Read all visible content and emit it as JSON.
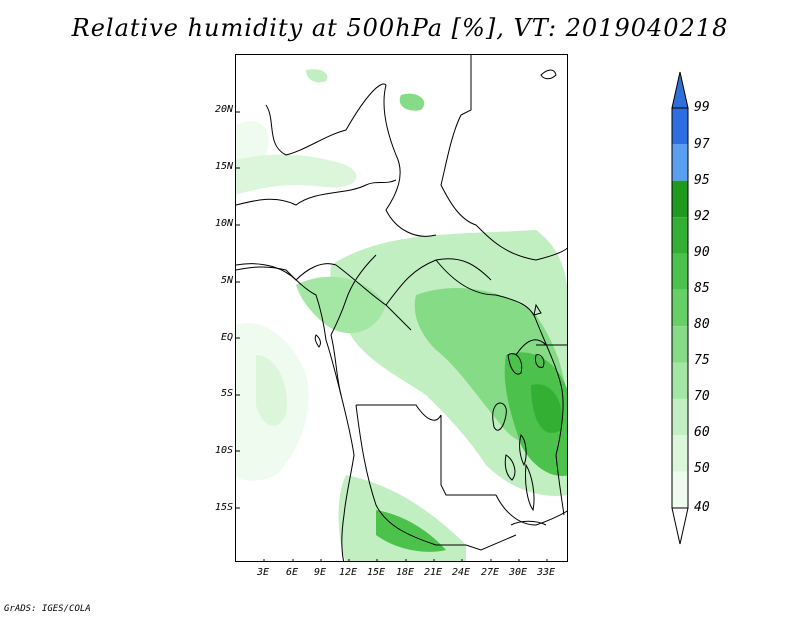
{
  "title": "Relative humidity at 500hPa [%], VT: 2019040218",
  "credit": "GrADS: IGES/COLA",
  "map": {
    "lat_labels": [
      "20N",
      "15N",
      "10N",
      "5N",
      "EQ",
      "5S",
      "10S",
      "15S"
    ],
    "lon_labels": [
      "3E",
      "6E",
      "9E",
      "12E",
      "15E",
      "18E",
      "21E",
      "24E",
      "27E",
      "30E",
      "33E"
    ]
  },
  "colorbar": {
    "labels": [
      "99",
      "97",
      "95",
      "92",
      "90",
      "85",
      "80",
      "75",
      "70",
      "60",
      "50",
      "40"
    ],
    "colors": [
      "#3d83ea",
      "#2d6fe0",
      "#5aa0f0",
      "#1f9a1f",
      "#33b033",
      "#4cc24c",
      "#66d066",
      "#86dc86",
      "#a4e6a4",
      "#c2efc2",
      "#dcf6dc",
      "#eefbee"
    ],
    "top_arrow_color": "#2f6fd9",
    "bottom_arrow_color": "#ffffff"
  },
  "palette": {
    "humid_light": "#eefbee",
    "humid_mid": "#c2efc2",
    "humid_high": "#86dc86",
    "humid_very_high": "#4cc24c",
    "humid_peak": "#33b033"
  }
}
